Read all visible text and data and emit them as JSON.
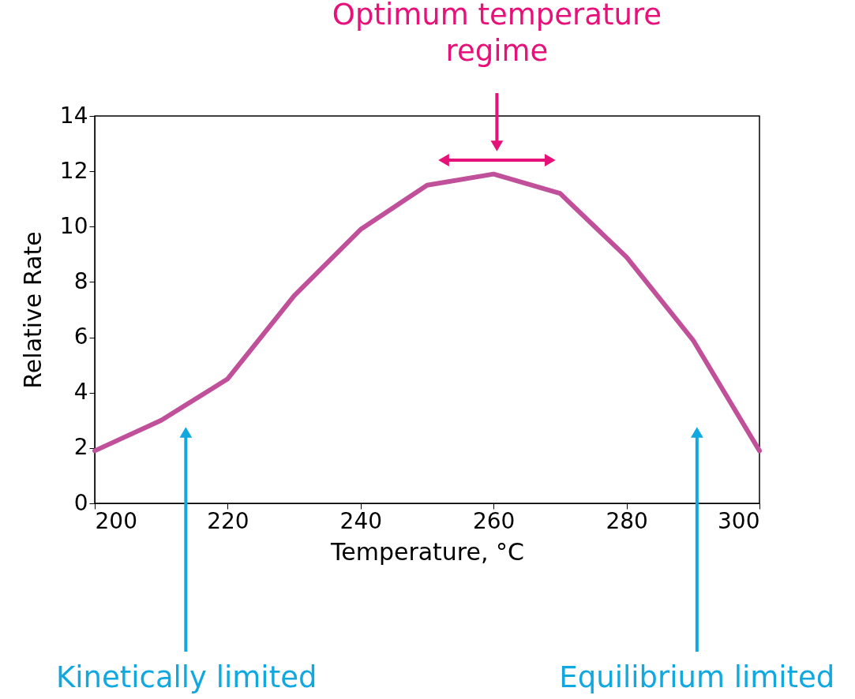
{
  "chart_data": {
    "type": "line",
    "xlabel": "Temperature, °C",
    "ylabel": "Relative Rate",
    "x": [
      200,
      210,
      220,
      230,
      240,
      250,
      260,
      270,
      280,
      290,
      300
    ],
    "series": [
      {
        "color": "#c0509a",
        "values": [
          1.9,
          3.0,
          4.5,
          7.5,
          9.9,
          11.5,
          11.9,
          11.2,
          8.9,
          5.9,
          1.9
        ]
      }
    ],
    "xlim": [
      200,
      300
    ],
    "xticks": [
      200,
      220,
      240,
      260,
      280,
      300
    ],
    "ylim": [
      0,
      14
    ],
    "yticks": [
      0,
      2,
      4,
      6,
      8,
      10,
      12,
      14
    ],
    "grid": false,
    "marker": "none",
    "line_style": "solid",
    "annotations": [
      "Optimum temperature regime",
      "Kinetically limited",
      "Equilibrium limited"
    ]
  }
}
